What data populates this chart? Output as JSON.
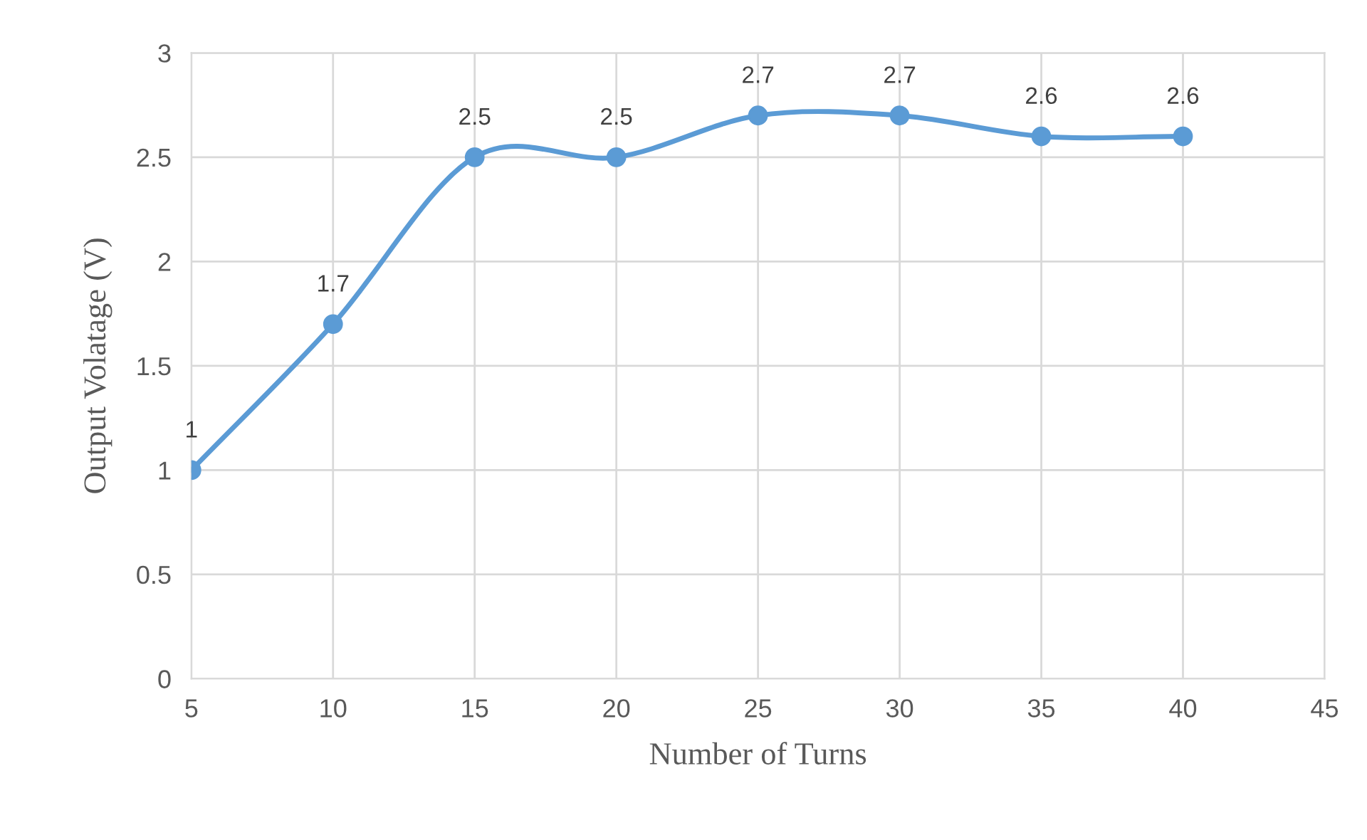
{
  "chart_data": {
    "type": "line",
    "xlabel": "Number of Turns",
    "ylabel": "Output Volatage (V)",
    "x": [
      5,
      10,
      15,
      20,
      25,
      30,
      35,
      40
    ],
    "series": [
      {
        "color": "#5b9bd5",
        "values": [
          1,
          1.7,
          2.5,
          2.5,
          2.7,
          2.7,
          2.6,
          2.6
        ]
      }
    ],
    "xlim": [
      5,
      45
    ],
    "xticks": [
      5,
      10,
      15,
      20,
      25,
      30,
      35,
      40,
      45
    ],
    "ylim": [
      0,
      3
    ],
    "yticks": [
      0,
      0.5,
      1,
      1.5,
      2,
      2.5,
      3
    ],
    "grid": true,
    "marker": "circle",
    "line_style": "solid",
    "data_labels": true
  }
}
